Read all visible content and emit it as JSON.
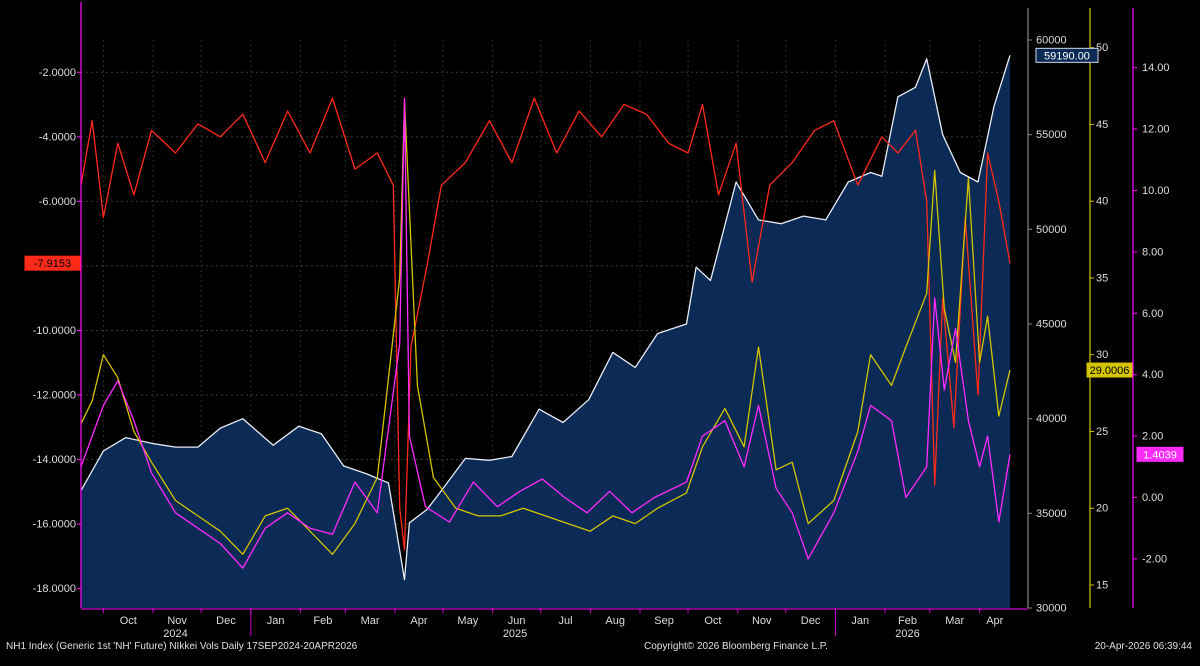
{
  "footer": {
    "left": "NH1 Index (Generic 1st 'NH' Future) NIkkei Vols Daily 17SEP2024-20APR2026",
    "center": "Copyright© 2026 Bloomberg Finance L.P.",
    "right": "20-Apr-2026 06:39:44"
  },
  "chart_data": {
    "type": "line",
    "x_start": "2024-09-17",
    "x_end": "2026-04-20",
    "months": [
      {
        "label": "Oct",
        "date": "2024-10-01"
      },
      {
        "label": "Nov",
        "date": "2024-11-01"
      },
      {
        "label": "Dec",
        "date": "2024-12-01"
      },
      {
        "label": "Jan",
        "date": "2025-01-01"
      },
      {
        "label": "Feb",
        "date": "2025-02-01"
      },
      {
        "label": "Mar",
        "date": "2025-03-01"
      },
      {
        "label": "Apr",
        "date": "2025-04-01"
      },
      {
        "label": "May",
        "date": "2025-05-01"
      },
      {
        "label": "Jun",
        "date": "2025-06-01"
      },
      {
        "label": "Jul",
        "date": "2025-07-01"
      },
      {
        "label": "Aug",
        "date": "2025-08-01"
      },
      {
        "label": "Sep",
        "date": "2025-09-01"
      },
      {
        "label": "Oct",
        "date": "2025-10-01"
      },
      {
        "label": "Nov",
        "date": "2025-11-01"
      },
      {
        "label": "Dec",
        "date": "2025-12-01"
      },
      {
        "label": "Jan",
        "date": "2026-01-01"
      },
      {
        "label": "Feb",
        "date": "2026-02-01"
      },
      {
        "label": "Mar",
        "date": "2026-03-01"
      },
      {
        "label": "Apr",
        "date": "2026-04-01"
      }
    ],
    "years": [
      {
        "label": "2024",
        "date": "2024-11-15"
      },
      {
        "label": "2025",
        "date": "2025-06-15"
      },
      {
        "label": "2026",
        "date": "2026-02-15"
      }
    ],
    "axes": {
      "left": {
        "min": -18.6,
        "max": -1.0,
        "ticks": [
          -2,
          -4,
          -6,
          -8,
          -10,
          -12,
          -14,
          -16,
          -18
        ],
        "decimals": 4,
        "color": "#ff00ff"
      },
      "price": {
        "min": 30000,
        "max": 60000,
        "ticks": [
          30000,
          35000,
          40000,
          45000,
          50000,
          55000,
          60000
        ],
        "decimals": 0,
        "color": "#888888"
      },
      "vol": {
        "min": 13.5,
        "max": 50.5,
        "ticks": [
          15,
          20,
          25,
          30,
          35,
          40,
          45,
          50
        ],
        "decimals": 0,
        "color": "#d4c400"
      },
      "skew": {
        "min": -3.6,
        "max": 14.9,
        "ticks": [
          -2,
          0,
          2,
          4,
          6,
          8,
          10,
          12,
          14
        ],
        "decimals": 2,
        "color": "#ff00ff"
      }
    },
    "series": [
      {
        "axis": "price",
        "color": "#e8ecf4",
        "fill": "#0b2a55",
        "last": "59190.00",
        "points": [
          [
            "2024-09-17",
            36200
          ],
          [
            "2024-10-01",
            38300
          ],
          [
            "2024-10-15",
            39000
          ],
          [
            "2024-10-31",
            38700
          ],
          [
            "2024-11-15",
            38500
          ],
          [
            "2024-11-29",
            38500
          ],
          [
            "2024-12-13",
            39500
          ],
          [
            "2024-12-27",
            40000
          ],
          [
            "2025-01-15",
            38600
          ],
          [
            "2025-01-31",
            39600
          ],
          [
            "2025-02-14",
            39200
          ],
          [
            "2025-02-28",
            37500
          ],
          [
            "2025-03-14",
            37100
          ],
          [
            "2025-03-28",
            36600
          ],
          [
            "2025-04-07",
            31500
          ],
          [
            "2025-04-10",
            34500
          ],
          [
            "2025-04-21",
            35200
          ],
          [
            "2025-04-30",
            36200
          ],
          [
            "2025-05-15",
            37900
          ],
          [
            "2025-05-30",
            37800
          ],
          [
            "2025-06-13",
            38000
          ],
          [
            "2025-06-30",
            40500
          ],
          [
            "2025-07-15",
            39800
          ],
          [
            "2025-07-31",
            41000
          ],
          [
            "2025-08-15",
            43500
          ],
          [
            "2025-08-29",
            42700
          ],
          [
            "2025-09-12",
            44500
          ],
          [
            "2025-09-30",
            45000
          ],
          [
            "2025-10-06",
            48000
          ],
          [
            "2025-10-15",
            47300
          ],
          [
            "2025-10-31",
            52500
          ],
          [
            "2025-11-14",
            50500
          ],
          [
            "2025-11-28",
            50300
          ],
          [
            "2025-12-12",
            50700
          ],
          [
            "2025-12-26",
            50500
          ],
          [
            "2026-01-09",
            52500
          ],
          [
            "2026-01-23",
            53000
          ],
          [
            "2026-01-30",
            52800
          ],
          [
            "2026-02-09",
            57000
          ],
          [
            "2026-02-20",
            57500
          ],
          [
            "2026-02-27",
            59000
          ],
          [
            "2026-03-09",
            55000
          ],
          [
            "2026-03-20",
            53000
          ],
          [
            "2026-03-31",
            52500
          ],
          [
            "2026-04-10",
            56500
          ],
          [
            "2026-04-20",
            59190
          ]
        ]
      },
      {
        "axis": "left",
        "color": "#ff2a1a",
        "last": "-7.9153",
        "points": [
          [
            "2024-09-17",
            -5.5
          ],
          [
            "2024-09-24",
            -3.5
          ],
          [
            "2024-10-01",
            -6.5
          ],
          [
            "2024-10-10",
            -4.2
          ],
          [
            "2024-10-20",
            -5.8
          ],
          [
            "2024-10-31",
            -3.8
          ],
          [
            "2024-11-15",
            -4.5
          ],
          [
            "2024-11-29",
            -3.6
          ],
          [
            "2024-12-13",
            -4.0
          ],
          [
            "2024-12-27",
            -3.3
          ],
          [
            "2025-01-10",
            -4.8
          ],
          [
            "2025-01-24",
            -3.2
          ],
          [
            "2025-02-07",
            -4.5
          ],
          [
            "2025-02-21",
            -2.8
          ],
          [
            "2025-03-07",
            -5.0
          ],
          [
            "2025-03-21",
            -4.5
          ],
          [
            "2025-03-31",
            -5.5
          ],
          [
            "2025-04-04",
            -15.5
          ],
          [
            "2025-04-07",
            -16.8
          ],
          [
            "2025-04-11",
            -10.5
          ],
          [
            "2025-04-21",
            -8.0
          ],
          [
            "2025-04-30",
            -5.5
          ],
          [
            "2025-05-15",
            -4.8
          ],
          [
            "2025-05-30",
            -3.5
          ],
          [
            "2025-06-13",
            -4.8
          ],
          [
            "2025-06-27",
            -2.8
          ],
          [
            "2025-07-11",
            -4.5
          ],
          [
            "2025-07-25",
            -3.2
          ],
          [
            "2025-08-08",
            -4.0
          ],
          [
            "2025-08-22",
            -3.0
          ],
          [
            "2025-09-05",
            -3.3
          ],
          [
            "2025-09-19",
            -4.2
          ],
          [
            "2025-10-01",
            -4.5
          ],
          [
            "2025-10-10",
            -3.0
          ],
          [
            "2025-10-20",
            -5.8
          ],
          [
            "2025-10-31",
            -4.2
          ],
          [
            "2025-11-10",
            -8.5
          ],
          [
            "2025-11-21",
            -5.5
          ],
          [
            "2025-12-05",
            -4.8
          ],
          [
            "2025-12-19",
            -3.8
          ],
          [
            "2025-12-31",
            -3.5
          ],
          [
            "2026-01-15",
            -5.5
          ],
          [
            "2026-01-30",
            -4.0
          ],
          [
            "2026-02-09",
            -4.5
          ],
          [
            "2026-02-20",
            -3.8
          ],
          [
            "2026-02-27",
            -6.0
          ],
          [
            "2026-03-04",
            -14.8
          ],
          [
            "2026-03-09",
            -9.0
          ],
          [
            "2026-03-16",
            -13.0
          ],
          [
            "2026-03-23",
            -6.5
          ],
          [
            "2026-03-31",
            -12.0
          ],
          [
            "2026-04-06",
            -4.5
          ],
          [
            "2026-04-13",
            -6.0
          ],
          [
            "2026-04-20",
            -7.9153
          ]
        ]
      },
      {
        "axis": "vol",
        "color": "#d4c400",
        "last": "29.0006",
        "points": [
          [
            "2024-09-17",
            25.5
          ],
          [
            "2024-09-24",
            27.0
          ],
          [
            "2024-10-01",
            30.0
          ],
          [
            "2024-10-10",
            28.5
          ],
          [
            "2024-10-20",
            25.0
          ],
          [
            "2024-10-31",
            23.0
          ],
          [
            "2024-11-15",
            20.5
          ],
          [
            "2024-11-29",
            19.5
          ],
          [
            "2024-12-13",
            18.5
          ],
          [
            "2024-12-27",
            17.0
          ],
          [
            "2025-01-10",
            19.5
          ],
          [
            "2025-01-24",
            20.0
          ],
          [
            "2025-02-07",
            18.5
          ],
          [
            "2025-02-21",
            17.0
          ],
          [
            "2025-03-07",
            19.0
          ],
          [
            "2025-03-21",
            22.0
          ],
          [
            "2025-04-04",
            35.0
          ],
          [
            "2025-04-07",
            46.5
          ],
          [
            "2025-04-15",
            28.0
          ],
          [
            "2025-04-25",
            22.0
          ],
          [
            "2025-05-09",
            20.0
          ],
          [
            "2025-05-23",
            19.5
          ],
          [
            "2025-06-06",
            19.5
          ],
          [
            "2025-06-20",
            20.0
          ],
          [
            "2025-07-04",
            19.5
          ],
          [
            "2025-07-18",
            19.0
          ],
          [
            "2025-08-01",
            18.5
          ],
          [
            "2025-08-15",
            19.5
          ],
          [
            "2025-08-29",
            19.0
          ],
          [
            "2025-09-12",
            20.0
          ],
          [
            "2025-09-30",
            21.0
          ],
          [
            "2025-10-10",
            24.0
          ],
          [
            "2025-10-24",
            26.5
          ],
          [
            "2025-11-05",
            24.0
          ],
          [
            "2025-11-14",
            30.5
          ],
          [
            "2025-11-25",
            22.5
          ],
          [
            "2025-12-05",
            23.0
          ],
          [
            "2025-12-15",
            19.0
          ],
          [
            "2025-12-31",
            20.5
          ],
          [
            "2026-01-15",
            25.0
          ],
          [
            "2026-01-23",
            30.0
          ],
          [
            "2026-02-05",
            28.0
          ],
          [
            "2026-02-14",
            30.5
          ],
          [
            "2026-02-27",
            34.0
          ],
          [
            "2026-03-04",
            42.0
          ],
          [
            "2026-03-10",
            33.0
          ],
          [
            "2026-03-17",
            29.5
          ],
          [
            "2026-03-25",
            41.5
          ],
          [
            "2026-04-01",
            29.5
          ],
          [
            "2026-04-06",
            32.5
          ],
          [
            "2026-04-13",
            26.0
          ],
          [
            "2026-04-20",
            29.0006
          ]
        ]
      },
      {
        "axis": "skew",
        "color": "#ff2aff",
        "last": "1.4039",
        "points": [
          [
            "2024-09-17",
            1.0
          ],
          [
            "2024-09-24",
            2.0
          ],
          [
            "2024-10-01",
            3.0
          ],
          [
            "2024-10-10",
            3.8
          ],
          [
            "2024-10-20",
            2.5
          ],
          [
            "2024-10-31",
            0.8
          ],
          [
            "2024-11-15",
            -0.5
          ],
          [
            "2024-11-29",
            -1.0
          ],
          [
            "2024-12-13",
            -1.5
          ],
          [
            "2024-12-27",
            -2.3
          ],
          [
            "2025-01-10",
            -1.0
          ],
          [
            "2025-01-24",
            -0.5
          ],
          [
            "2025-02-07",
            -1.0
          ],
          [
            "2025-02-21",
            -1.2
          ],
          [
            "2025-03-07",
            0.5
          ],
          [
            "2025-03-21",
            -0.5
          ],
          [
            "2025-04-04",
            5.0
          ],
          [
            "2025-04-07",
            13.0
          ],
          [
            "2025-04-10",
            2.0
          ],
          [
            "2025-04-20",
            -0.3
          ],
          [
            "2025-05-05",
            -0.8
          ],
          [
            "2025-05-20",
            0.5
          ],
          [
            "2025-06-04",
            -0.3
          ],
          [
            "2025-06-18",
            0.2
          ],
          [
            "2025-07-02",
            0.6
          ],
          [
            "2025-07-16",
            0.0
          ],
          [
            "2025-07-30",
            -0.5
          ],
          [
            "2025-08-13",
            0.2
          ],
          [
            "2025-08-27",
            -0.5
          ],
          [
            "2025-09-10",
            0.0
          ],
          [
            "2025-09-30",
            0.5
          ],
          [
            "2025-10-10",
            2.0
          ],
          [
            "2025-10-24",
            2.5
          ],
          [
            "2025-11-05",
            1.0
          ],
          [
            "2025-11-14",
            3.0
          ],
          [
            "2025-11-25",
            0.3
          ],
          [
            "2025-12-05",
            -0.5
          ],
          [
            "2025-12-15",
            -2.0
          ],
          [
            "2025-12-31",
            -0.5
          ],
          [
            "2026-01-15",
            1.5
          ],
          [
            "2026-01-23",
            3.0
          ],
          [
            "2026-02-05",
            2.5
          ],
          [
            "2026-02-14",
            0.0
          ],
          [
            "2026-02-27",
            1.0
          ],
          [
            "2026-03-04",
            6.5
          ],
          [
            "2026-03-10",
            3.5
          ],
          [
            "2026-03-17",
            5.5
          ],
          [
            "2026-03-25",
            2.5
          ],
          [
            "2026-04-01",
            1.0
          ],
          [
            "2026-04-06",
            2.0
          ],
          [
            "2026-04-13",
            -0.8
          ],
          [
            "2026-04-20",
            1.4039
          ]
        ]
      }
    ],
    "grid": true,
    "legend": "none"
  }
}
